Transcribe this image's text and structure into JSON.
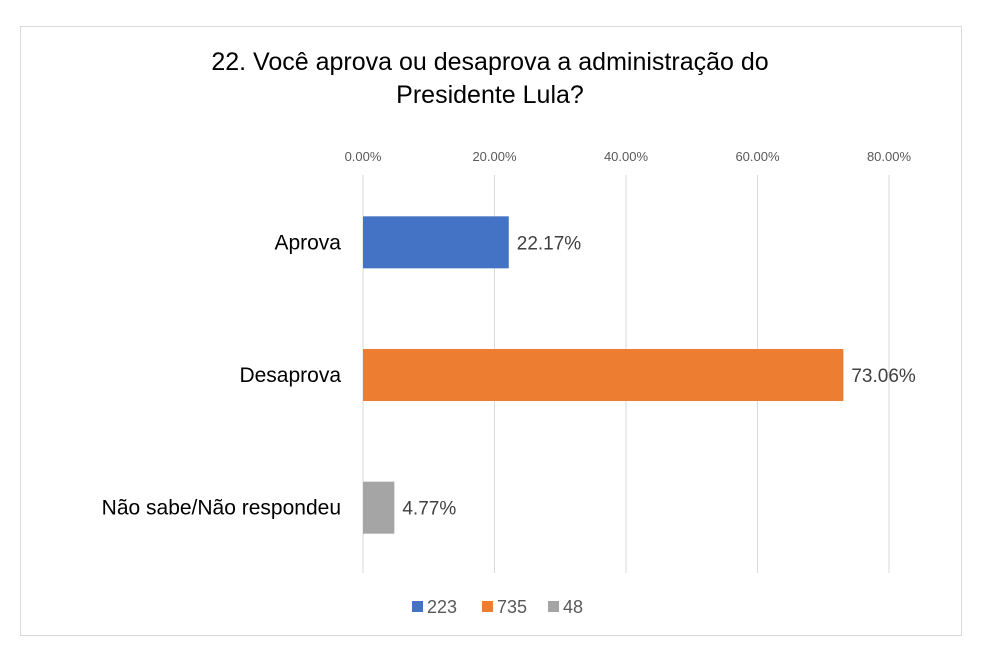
{
  "chart_data": {
    "type": "bar",
    "orientation": "horizontal",
    "title_lines": [
      "22. Você aprova ou desaprova a administração do",
      "Presidente Lula?"
    ],
    "categories": [
      "Aprova",
      "Desaprova",
      "Não sabe/Não respondeu"
    ],
    "values": [
      22.17,
      73.06,
      4.77
    ],
    "value_labels": [
      "22.17%",
      "73.06%",
      "4.77%"
    ],
    "colors": [
      "#4472c4",
      "#ed7d31",
      "#a5a5a5"
    ],
    "x_ticks": [
      0,
      20,
      40,
      60,
      80
    ],
    "x_tick_labels": [
      "0.00%",
      "20.00%",
      "40.00%",
      "60.00%",
      "80.00%"
    ],
    "xlim": [
      0,
      80
    ],
    "axis_position": "top",
    "grid": true,
    "legend": {
      "placement": "bottom",
      "entries": [
        {
          "label": "223",
          "color": "#4472c4"
        },
        {
          "label": "735",
          "color": "#ed7d31"
        },
        {
          "label": "48",
          "color": "#a5a5a5"
        }
      ]
    }
  }
}
